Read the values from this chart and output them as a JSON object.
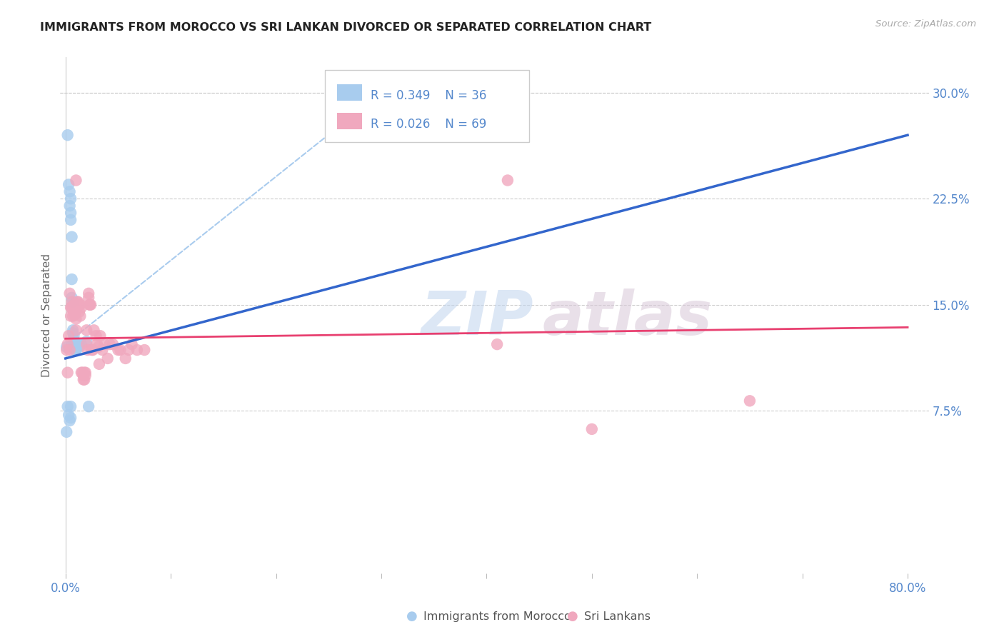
{
  "title": "IMMIGRANTS FROM MOROCCO VS SRI LANKAN DIVORCED OR SEPARATED CORRELATION CHART",
  "source": "Source: ZipAtlas.com",
  "ylabel": "Divorced or Separated",
  "xlim": [
    -0.005,
    0.82
  ],
  "ylim": [
    -0.04,
    0.325
  ],
  "plot_xlim": [
    0.0,
    0.8
  ],
  "plot_ylim": [
    0.0,
    0.305
  ],
  "xticks": [
    0.0,
    0.1,
    0.2,
    0.3,
    0.4,
    0.5,
    0.6,
    0.7,
    0.8
  ],
  "xtick_labels": [
    "0.0%",
    "",
    "",
    "",
    "",
    "",
    "",
    "",
    "80.0%"
  ],
  "yticks_right": [
    0.075,
    0.15,
    0.225,
    0.3
  ],
  "ytick_labels_right": [
    "7.5%",
    "15.0%",
    "22.5%",
    "30.0%"
  ],
  "legend_R_blue": "R = 0.349",
  "legend_N_blue": "N = 36",
  "legend_R_pink": "R = 0.026",
  "legend_N_pink": "N = 69",
  "legend_label_blue": "Immigrants from Morocco",
  "legend_label_pink": "Sri Lankans",
  "watermark_zip": "ZIP",
  "watermark_atlas": "atlas",
  "blue_color": "#A8CCEE",
  "pink_color": "#F0A8BE",
  "blue_line_color": "#3366CC",
  "pink_line_color": "#E84070",
  "axis_tick_color": "#5588CC",
  "grid_color": "#CCCCCC",
  "diag_color": "#AACCEE",
  "blue_pts": [
    [
      0.001,
      0.12
    ],
    [
      0.002,
      0.27
    ],
    [
      0.003,
      0.235
    ],
    [
      0.004,
      0.23
    ],
    [
      0.004,
      0.22
    ],
    [
      0.005,
      0.225
    ],
    [
      0.005,
      0.215
    ],
    [
      0.005,
      0.21
    ],
    [
      0.006,
      0.198
    ],
    [
      0.006,
      0.168
    ],
    [
      0.006,
      0.155
    ],
    [
      0.007,
      0.152
    ],
    [
      0.007,
      0.132
    ],
    [
      0.007,
      0.13
    ],
    [
      0.008,
      0.128
    ],
    [
      0.008,
      0.125
    ],
    [
      0.008,
      0.122
    ],
    [
      0.008,
      0.122
    ],
    [
      0.009,
      0.118
    ],
    [
      0.009,
      0.118
    ],
    [
      0.009,
      0.122
    ],
    [
      0.01,
      0.122
    ],
    [
      0.01,
      0.12
    ],
    [
      0.01,
      0.118
    ],
    [
      0.011,
      0.12
    ],
    [
      0.012,
      0.122
    ],
    [
      0.013,
      0.12
    ],
    [
      0.015,
      0.122
    ],
    [
      0.02,
      0.124
    ],
    [
      0.022,
      0.078
    ],
    [
      0.002,
      0.078
    ],
    [
      0.005,
      0.078
    ],
    [
      0.003,
      0.072
    ],
    [
      0.005,
      0.07
    ],
    [
      0.004,
      0.068
    ],
    [
      0.001,
      0.06
    ]
  ],
  "pink_pts": [
    [
      0.001,
      0.118
    ],
    [
      0.002,
      0.122
    ],
    [
      0.003,
      0.128
    ],
    [
      0.004,
      0.158
    ],
    [
      0.004,
      0.118
    ],
    [
      0.005,
      0.148
    ],
    [
      0.005,
      0.142
    ],
    [
      0.006,
      0.152
    ],
    [
      0.006,
      0.148
    ],
    [
      0.007,
      0.148
    ],
    [
      0.007,
      0.142
    ],
    [
      0.008,
      0.15
    ],
    [
      0.008,
      0.145
    ],
    [
      0.009,
      0.15
    ],
    [
      0.009,
      0.145
    ],
    [
      0.009,
      0.143
    ],
    [
      0.01,
      0.14
    ],
    [
      0.01,
      0.238
    ],
    [
      0.01,
      0.132
    ],
    [
      0.011,
      0.152
    ],
    [
      0.011,
      0.148
    ],
    [
      0.012,
      0.152
    ],
    [
      0.012,
      0.15
    ],
    [
      0.013,
      0.15
    ],
    [
      0.013,
      0.145
    ],
    [
      0.014,
      0.15
    ],
    [
      0.014,
      0.142
    ],
    [
      0.015,
      0.148
    ],
    [
      0.015,
      0.102
    ],
    [
      0.016,
      0.102
    ],
    [
      0.017,
      0.1
    ],
    [
      0.017,
      0.097
    ],
    [
      0.018,
      0.102
    ],
    [
      0.018,
      0.097
    ],
    [
      0.019,
      0.102
    ],
    [
      0.019,
      0.1
    ],
    [
      0.02,
      0.132
    ],
    [
      0.02,
      0.122
    ],
    [
      0.021,
      0.118
    ],
    [
      0.022,
      0.158
    ],
    [
      0.022,
      0.155
    ],
    [
      0.023,
      0.15
    ],
    [
      0.023,
      0.15
    ],
    [
      0.024,
      0.15
    ],
    [
      0.025,
      0.118
    ],
    [
      0.026,
      0.118
    ],
    [
      0.027,
      0.132
    ],
    [
      0.029,
      0.128
    ],
    [
      0.03,
      0.122
    ],
    [
      0.031,
      0.12
    ],
    [
      0.032,
      0.108
    ],
    [
      0.033,
      0.128
    ],
    [
      0.035,
      0.118
    ],
    [
      0.037,
      0.122
    ],
    [
      0.04,
      0.112
    ],
    [
      0.042,
      0.122
    ],
    [
      0.045,
      0.122
    ],
    [
      0.05,
      0.118
    ],
    [
      0.052,
      0.118
    ],
    [
      0.057,
      0.112
    ],
    [
      0.06,
      0.118
    ],
    [
      0.063,
      0.122
    ],
    [
      0.068,
      0.118
    ],
    [
      0.075,
      0.118
    ],
    [
      0.42,
      0.238
    ],
    [
      0.5,
      0.062
    ],
    [
      0.65,
      0.082
    ],
    [
      0.41,
      0.122
    ],
    [
      0.002,
      0.102
    ]
  ],
  "blue_line_x": [
    0.0,
    0.8
  ],
  "blue_line_start_y": 0.112,
  "blue_line_end_y": 0.27,
  "pink_line_x": [
    0.0,
    0.8
  ],
  "pink_line_start_y": 0.126,
  "pink_line_end_y": 0.134,
  "diag_line": [
    [
      0.0,
      0.122
    ],
    [
      0.3,
      0.3
    ]
  ]
}
